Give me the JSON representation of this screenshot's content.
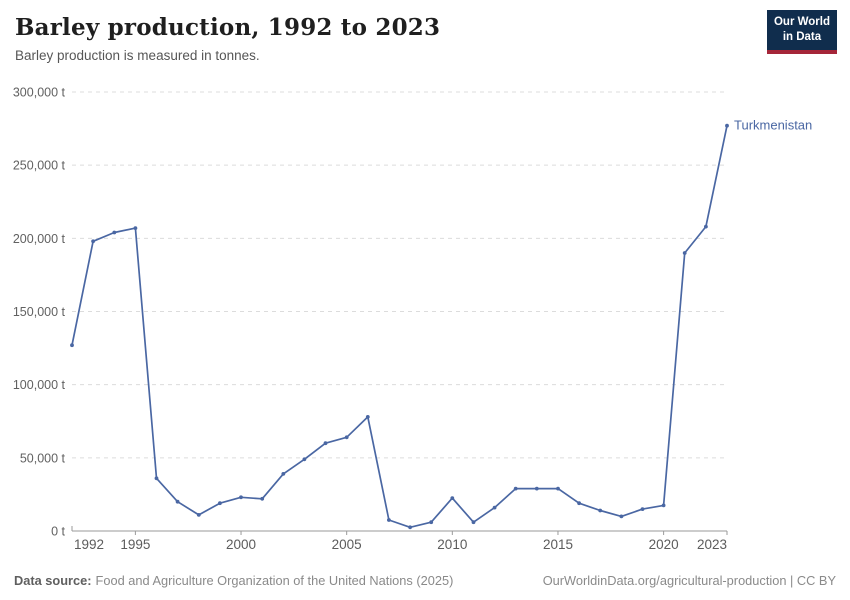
{
  "header": {
    "title": "Barley production, 1992 to 2023",
    "subtitle": "Barley production is measured in tonnes.",
    "logo": {
      "line1": "Our World",
      "line2": "in Data",
      "bg_color": "#102D4D",
      "accent_color": "#A52639"
    }
  },
  "chart_data": {
    "type": "line",
    "title": "Barley production, 1992 to 2023",
    "unit": "tonnes",
    "xlabel": "",
    "ylabel": "t",
    "xlim": [
      1992,
      2023
    ],
    "ylim": [
      0,
      300000
    ],
    "grid": "horizontal-dashed",
    "legend_position": "end-of-line",
    "x_ticks": [
      1992,
      1995,
      2000,
      2005,
      2010,
      2015,
      2020,
      2023
    ],
    "y_ticks": [
      {
        "value": 0,
        "label": "0 t"
      },
      {
        "value": 50000,
        "label": "50,000 t"
      },
      {
        "value": 100000,
        "label": "100,000 t"
      },
      {
        "value": 150000,
        "label": "150,000 t"
      },
      {
        "value": 200000,
        "label": "200,000 t"
      },
      {
        "value": 250000,
        "label": "250,000 t"
      },
      {
        "value": 300000,
        "label": "300,000 t"
      }
    ],
    "series": [
      {
        "name": "Turkmenistan",
        "color": "#4A67A3",
        "x": [
          1992,
          1993,
          1994,
          1995,
          1996,
          1997,
          1998,
          1999,
          2000,
          2001,
          2002,
          2003,
          2004,
          2005,
          2006,
          2007,
          2008,
          2009,
          2010,
          2011,
          2012,
          2013,
          2014,
          2015,
          2016,
          2017,
          2018,
          2019,
          2020,
          2021,
          2022,
          2023
        ],
        "values": [
          127000,
          198000,
          204000,
          207000,
          36000,
          20000,
          11000,
          19000,
          23000,
          22000,
          39000,
          49000,
          60000,
          64000,
          78000,
          7500,
          2500,
          6000,
          22500,
          6000,
          16000,
          29000,
          29000,
          29000,
          19000,
          14000,
          10000,
          15000,
          17500,
          190000,
          208000,
          277000
        ]
      }
    ]
  },
  "footer": {
    "source_label": "Data source:",
    "source_text": "Food and Agriculture Organization of the United Nations (2025)",
    "credit": "OurWorldinData.org/agricultural-production | CC BY"
  }
}
